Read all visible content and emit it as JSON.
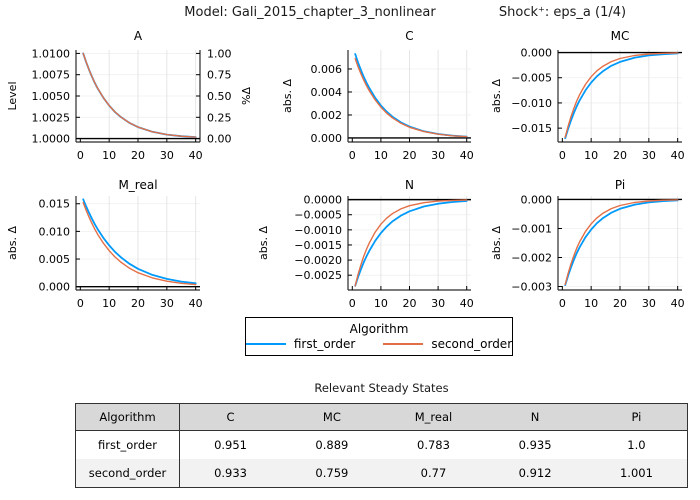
{
  "chart_data": {
    "type": "line",
    "suptitle_model": "Model: Gali_2015_chapter_3_nonlinear",
    "suptitle_shock": "Shock⁺: eps_a  (1/4)",
    "x": [
      1,
      2,
      3,
      4,
      5,
      6,
      8,
      10,
      12,
      14,
      17,
      20,
      25,
      30,
      35,
      40
    ],
    "xlim": [
      -1.5,
      41.5
    ],
    "xticks": [
      0,
      10,
      20,
      30,
      40
    ],
    "grid": true,
    "legend": {
      "title": "Algorithm",
      "position": "bottom-center",
      "series": [
        {
          "name": "first_order",
          "color": "#009AFA"
        },
        {
          "name": "second_order",
          "color": "#E36F47"
        }
      ]
    },
    "subplots": [
      {
        "title": "A",
        "ylabel": "Level",
        "ylabel_right": "%Δ",
        "ylim": [
          0.9996,
          1.0104
        ],
        "ref_line": 1.0,
        "yticks": [
          {
            "v": 1.0,
            "label": "1.0000"
          },
          {
            "v": 1.0025,
            "label": "1.0025"
          },
          {
            "v": 1.005,
            "label": "1.0050"
          },
          {
            "v": 1.0075,
            "label": "1.0075"
          },
          {
            "v": 1.01,
            "label": "1.0100"
          }
        ],
        "yticks_right": [
          {
            "v": 1.0,
            "label": "0.00"
          },
          {
            "v": 1.0025,
            "label": "0.25"
          },
          {
            "v": 1.005,
            "label": "0.50"
          },
          {
            "v": 1.0075,
            "label": "0.75"
          },
          {
            "v": 1.01,
            "label": "1.00"
          }
        ],
        "series": [
          {
            "name": "first_order",
            "values": [
              1.01,
              1.009,
              1.0081,
              1.00729,
              1.006561,
              1.0059049,
              1.004783,
              1.0038742,
              1.0031381,
              1.0025419,
              1.001853,
              1.0013509,
              1.0007977,
              1.000471,
              1.0002781,
              1.0001642
            ]
          },
          {
            "name": "second_order",
            "values": [
              1.01,
              1.009,
              1.0081,
              1.00729,
              1.006561,
              1.0059049,
              1.004783,
              1.0038742,
              1.0031381,
              1.0025419,
              1.001853,
              1.0013509,
              1.0007977,
              1.000471,
              1.0002781,
              1.0001642
            ]
          }
        ]
      },
      {
        "title": "C",
        "ylabel": "abs. Δ",
        "ylim": [
          -0.00035,
          0.00765
        ],
        "ref_line": 0,
        "yticks": [
          {
            "v": 0,
            "label": "0.000"
          },
          {
            "v": 0.002,
            "label": "0.002"
          },
          {
            "v": 0.004,
            "label": "0.004"
          },
          {
            "v": 0.006,
            "label": "0.006"
          }
        ],
        "series": [
          {
            "name": "first_order",
            "values": [
              0.0073,
              0.00657,
              0.005913,
              0.0053217,
              0.0047895,
              0.0043106,
              0.0034916,
              0.0028282,
              0.0022908,
              0.0018556,
              0.0013527,
              0.0009861,
              0.0005823,
              0.0003438,
              0.000203,
              0.0001199
            ]
          },
          {
            "name": "second_order",
            "values": [
              0.0069,
              0.00621,
              0.005589,
              0.0050301,
              0.0045271,
              0.0040744,
              0.0033003,
              0.0026732,
              0.0021653,
              0.0017539,
              0.0012786,
              0.0009321,
              0.0005504,
              0.000325,
              0.0001919,
              0.0001133
            ]
          }
        ]
      },
      {
        "title": "MC",
        "ylabel": "abs. Δ",
        "ylim": [
          -0.01775,
          0.0005
        ],
        "ref_line": 0,
        "yticks": [
          {
            "v": 0,
            "label": "0.000"
          },
          {
            "v": -0.005,
            "label": "−0.005"
          },
          {
            "v": -0.01,
            "label": "−0.010"
          },
          {
            "v": -0.015,
            "label": "−0.015"
          }
        ],
        "series": [
          {
            "name": "first_order",
            "values": [
              -0.017,
              -0.01513,
              -0.0134657,
              -0.0119845,
              -0.0106662,
              -0.0094927,
              -0.0075197,
              -0.0059561,
              -0.004718,
              -0.0037371,
              -0.0026346,
              -0.0018573,
              -0.0010371,
              -0.0005791,
              -0.0003234,
              -0.0001806
            ]
          },
          {
            "name": "second_order",
            "values": [
              -0.0168,
              -0.014616,
              -0.0127159,
              -0.0110629,
              -0.0096247,
              -0.0083735,
              -0.0063379,
              -0.0047972,
              -0.003631,
              -0.0027483,
              -0.0018097,
              -0.0011917,
              -0.000594,
              -0.0002961,
              -0.0001476,
              -7.36e-05
            ]
          }
        ]
      },
      {
        "title": "M_real",
        "ylabel": "abs. Δ",
        "ylim": [
          -0.0006,
          0.0164
        ],
        "ref_line": 0,
        "yticks": [
          {
            "v": 0,
            "label": "0.000"
          },
          {
            "v": 0.005,
            "label": "0.005"
          },
          {
            "v": 0.01,
            "label": "0.010"
          },
          {
            "v": 0.015,
            "label": "0.015"
          }
        ],
        "series": [
          {
            "name": "first_order",
            "values": [
              0.0158,
              0.014536,
              0.0133731,
              0.0123033,
              0.011319,
              0.0104135,
              0.008814,
              0.0074602,
              0.0063137,
              0.0053439,
              0.0041618,
              0.0032407,
              0.0021359,
              0.0014078,
              0.0009278,
              0.0006115
            ]
          },
          {
            "name": "second_order",
            "values": [
              0.0152,
              0.013832,
              0.0125871,
              0.0114543,
              0.0104234,
              0.0094853,
              0.0078548,
              0.0065045,
              0.0053864,
              0.0044605,
              0.0033613,
              0.002533,
              0.0015807,
              0.0009865,
              0.0006156,
              0.0003841
            ]
          }
        ]
      },
      {
        "title": "N",
        "ylabel": "abs. Δ",
        "ylim": [
          -0.00299,
          0.00012
        ],
        "ref_line": 0,
        "yticks": [
          {
            "v": 0,
            "label": "0.0000"
          },
          {
            "v": -0.0005,
            "label": "−0.0005"
          },
          {
            "v": -0.001,
            "label": "−0.0010"
          },
          {
            "v": -0.0015,
            "label": "−0.0015"
          },
          {
            "v": -0.002,
            "label": "−0.0020"
          },
          {
            "v": -0.0025,
            "label": "−0.0025"
          }
        ],
        "series": [
          {
            "name": "first_order",
            "values": [
              -0.00285,
              -0.002565,
              -0.0023085,
              -0.0020777,
              -0.0018699,
              -0.0016829,
              -0.0013632,
              -0.0011041,
              -0.0008944,
              -0.0007244,
              -0.0005281,
              -0.000385,
              -0.0002273,
              -0.0001342,
              -7.93e-05,
              -4.68e-05
            ]
          },
          {
            "name": "second_order",
            "values": [
              -0.00285,
              -0.0024795,
              -0.0021572,
              -0.0018767,
              -0.0016328,
              -0.0014205,
              -0.0010752,
              -0.0008138,
              -0.000616,
              -0.0004662,
              -0.000307,
              -0.0002022,
              -0.0001008,
              -5.02e-05,
              -2.5e-05,
              -1.25e-05
            ]
          }
        ]
      },
      {
        "title": "Pi",
        "ylabel": "abs. Δ",
        "ylim": [
          -0.00312,
          0.00012
        ],
        "ref_line": 0,
        "yticks": [
          {
            "v": 0,
            "label": "0.000"
          },
          {
            "v": -0.001,
            "label": "−0.001"
          },
          {
            "v": -0.002,
            "label": "−0.002"
          },
          {
            "v": -0.003,
            "label": "−0.003"
          }
        ],
        "series": [
          {
            "name": "first_order",
            "values": [
              -0.00295,
              -0.0026255,
              -0.0023367,
              -0.0020797,
              -0.0018509,
              -0.0016473,
              -0.0013048,
              -0.0010336,
              -0.0008187,
              -0.0006485,
              -0.0004572,
              -0.0003223,
              -0.00018,
              -0.0001005,
              -5.61e-05,
              -3.13e-05
            ]
          },
          {
            "name": "second_order",
            "values": [
              -0.00293,
              -0.0025491,
              -0.0022177,
              -0.0019294,
              -0.0016786,
              -0.0014604,
              -0.0011054,
              -0.0008367,
              -0.0006333,
              -0.0004793,
              -0.0003156,
              -0.0002078,
              -0.0001036,
              -5.16e-05,
              -2.57e-05,
              -1.28e-05
            ]
          }
        ]
      }
    ]
  },
  "steady_state_table": {
    "title": "Relevant Steady States",
    "columns": [
      "Algorithm",
      "C",
      "MC",
      "M_real",
      "N",
      "Pi"
    ],
    "rows": [
      [
        "first_order",
        "0.951",
        "0.889",
        "0.783",
        "0.935",
        "1.0"
      ],
      [
        "second_order",
        "0.933",
        "0.759",
        "0.77",
        "0.912",
        "1.001"
      ]
    ]
  },
  "colors": {
    "first_order": "#009AFA",
    "second_order": "#E36F47",
    "grid": "#E3E3E3",
    "spine": "#2a2a2a",
    "reference_line": "#000000",
    "table_header_bg": "#d8d8d8",
    "table_alt_row_bg": "#f2f2f2"
  }
}
